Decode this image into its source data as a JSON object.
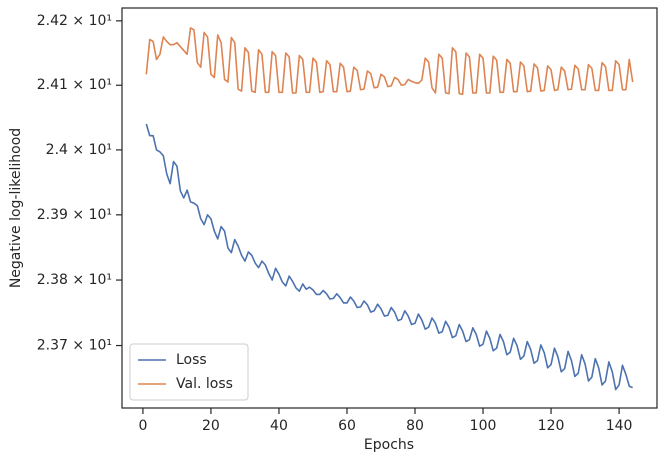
{
  "chart_data": {
    "type": "line",
    "x_label": "Epochs",
    "y_label": "Negative log-likelihood",
    "log_y": true,
    "legend": "lower left",
    "x": [
      1,
      2,
      3,
      4,
      5,
      6,
      7,
      8,
      9,
      10,
      11,
      12,
      13,
      14,
      15,
      16,
      17,
      18,
      19,
      20,
      21,
      22,
      23,
      24,
      25,
      26,
      27,
      28,
      29,
      30,
      31,
      32,
      33,
      34,
      35,
      36,
      37,
      38,
      39,
      40,
      41,
      42,
      43,
      44,
      45,
      46,
      47,
      48,
      49,
      50,
      51,
      52,
      53,
      54,
      55,
      56,
      57,
      58,
      59,
      60,
      61,
      62,
      63,
      64,
      65,
      66,
      67,
      68,
      69,
      70,
      71,
      72,
      73,
      74,
      75,
      76,
      77,
      78,
      79,
      80,
      81,
      82,
      83,
      84,
      85,
      86,
      87,
      88,
      89,
      90,
      91,
      92,
      93,
      94,
      95,
      96,
      97,
      98,
      99,
      100,
      101,
      102,
      103,
      104,
      105,
      106,
      107,
      108,
      109,
      110,
      111,
      112,
      113,
      114,
      115,
      116,
      117,
      118,
      119,
      120,
      121,
      122,
      123,
      124,
      125,
      126,
      127,
      128,
      129,
      130,
      131,
      132,
      133,
      134,
      135,
      136,
      137,
      138,
      139,
      140,
      141,
      142,
      143,
      144
    ],
    "series": [
      {
        "name": "Loss",
        "color": "#4c72b0",
        "values": [
          24.04,
          24.022,
          24.022,
          24.0,
          23.997,
          23.991,
          23.963,
          23.948,
          23.982,
          23.975,
          23.937,
          23.926,
          23.938,
          23.92,
          23.918,
          23.914,
          23.894,
          23.885,
          23.9,
          23.894,
          23.875,
          23.863,
          23.882,
          23.875,
          23.849,
          23.842,
          23.862,
          23.852,
          23.838,
          23.829,
          23.843,
          23.838,
          23.826,
          23.819,
          23.829,
          23.823,
          23.81,
          23.8,
          23.818,
          23.809,
          23.797,
          23.791,
          23.806,
          23.798,
          23.788,
          23.783,
          23.794,
          23.786,
          23.789,
          23.785,
          23.778,
          23.778,
          23.784,
          23.779,
          23.771,
          23.772,
          23.779,
          23.773,
          23.765,
          23.765,
          23.774,
          23.768,
          23.758,
          23.759,
          23.768,
          23.762,
          23.751,
          23.753,
          23.763,
          23.756,
          23.745,
          23.746,
          23.758,
          23.751,
          23.738,
          23.74,
          23.753,
          23.745,
          23.732,
          23.734,
          23.748,
          23.739,
          23.725,
          23.728,
          23.742,
          23.734,
          23.719,
          23.721,
          23.737,
          23.728,
          23.712,
          23.715,
          23.732,
          23.722,
          23.706,
          23.709,
          23.727,
          23.717,
          23.699,
          23.702,
          23.722,
          23.711,
          23.692,
          23.696,
          23.717,
          23.706,
          23.686,
          23.69,
          23.711,
          23.7,
          23.679,
          23.684,
          23.706,
          23.694,
          23.673,
          23.677,
          23.701,
          23.689,
          23.666,
          23.671,
          23.696,
          23.683,
          23.66,
          23.665,
          23.691,
          23.677,
          23.653,
          23.658,
          23.686,
          23.672,
          23.646,
          23.652,
          23.68,
          23.666,
          23.64,
          23.646,
          23.675,
          23.66,
          23.633,
          23.64,
          23.67,
          23.656,
          23.638,
          23.636
        ]
      },
      {
        "name": "Val. loss",
        "color": "#dd8452",
        "values": [
          24.117,
          24.171,
          24.168,
          24.14,
          24.148,
          24.175,
          24.168,
          24.163,
          24.163,
          24.166,
          24.16,
          24.154,
          24.148,
          24.189,
          24.186,
          24.135,
          24.128,
          24.182,
          24.175,
          24.117,
          24.112,
          24.178,
          24.166,
          24.109,
          24.105,
          24.174,
          24.166,
          24.094,
          24.091,
          24.158,
          24.151,
          24.091,
          24.089,
          24.155,
          24.148,
          24.089,
          24.089,
          24.152,
          24.146,
          24.089,
          24.089,
          24.15,
          24.144,
          24.088,
          24.088,
          24.146,
          24.14,
          24.089,
          24.089,
          24.142,
          24.136,
          24.089,
          24.09,
          24.138,
          24.132,
          24.09,
          24.09,
          24.134,
          24.128,
          24.09,
          24.091,
          24.128,
          24.123,
          24.093,
          24.094,
          24.122,
          24.118,
          24.096,
          24.097,
          24.117,
          24.113,
          24.098,
          24.099,
          24.112,
          24.109,
          24.1,
          24.101,
          24.109,
          24.106,
          24.104,
          24.103,
          24.108,
          24.142,
          24.136,
          24.096,
          24.088,
          24.148,
          24.142,
          24.088,
          24.087,
          24.158,
          24.152,
          24.087,
          24.086,
          24.15,
          24.144,
          24.088,
          24.088,
          24.148,
          24.142,
          24.088,
          24.088,
          24.145,
          24.139,
          24.089,
          24.089,
          24.14,
          24.134,
          24.09,
          24.09,
          24.136,
          24.13,
          24.09,
          24.091,
          24.133,
          24.127,
          24.091,
          24.092,
          24.13,
          24.124,
          24.092,
          24.093,
          24.128,
          24.122,
          24.093,
          24.094,
          24.131,
          24.125,
          24.093,
          24.093,
          24.132,
          24.126,
          24.092,
          24.092,
          24.135,
          24.129,
          24.092,
          24.092,
          24.138,
          24.132,
          24.093,
          24.093,
          24.14,
          24.105
        ]
      }
    ],
    "xlim": [
      -6.15,
      151.15
    ],
    "xticks": [
      0,
      20,
      40,
      60,
      80,
      100,
      120,
      140
    ],
    "ylim": [
      23.605,
      24.22
    ],
    "yticks": [
      {
        "value": 23.7,
        "label": "2.37 × 10¹"
      },
      {
        "value": 23.8,
        "label": "2.38 × 10¹"
      },
      {
        "value": 23.9,
        "label": "2.39 × 10¹"
      },
      {
        "value": 24.0,
        "label": "2.4 × 10¹"
      },
      {
        "value": 24.1,
        "label": "2.41 × 10¹"
      },
      {
        "value": 24.2,
        "label": "2.42 × 10¹"
      }
    ]
  }
}
